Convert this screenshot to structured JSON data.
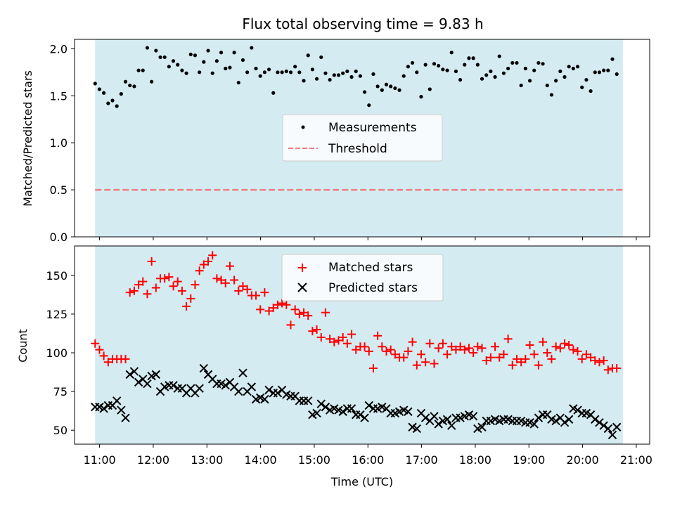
{
  "figure": {
    "title": "Flux total observing time = 9.83 h"
  },
  "colors": {
    "shade": "#d4ebf2",
    "measurement": "#000000",
    "threshold": "#f08080",
    "matched": "#ff0000",
    "predicted": "#000000"
  },
  "chart_data": [
    {
      "type": "scatter",
      "panel": "top",
      "title": "Flux total observing time = 9.83 h",
      "xlabel": "",
      "ylabel": "Matched/Predicted stars",
      "xlim": [
        "10:32",
        "21:15"
      ],
      "ylim": [
        0,
        2.1
      ],
      "yticks": [
        "0.0",
        "0.5",
        "1.0",
        "1.5",
        "2.0"
      ],
      "observing_window": [
        "10:55",
        "20:45"
      ],
      "legend": {
        "location": "center",
        "entries": [
          "Measurements",
          "Threshold"
        ]
      },
      "threshold": {
        "name": "Threshold",
        "value": 0.5
      },
      "series": [
        {
          "name": "Measurements",
          "x_start": "10:55",
          "x_step_minutes": 4.86,
          "y": [
            1.63,
            1.57,
            1.53,
            1.42,
            1.45,
            1.39,
            1.52,
            1.65,
            1.61,
            1.6,
            1.77,
            1.77,
            2.01,
            1.65,
            1.98,
            1.91,
            1.91,
            1.81,
            1.87,
            1.83,
            1.77,
            1.74,
            1.94,
            1.93,
            1.75,
            1.86,
            1.98,
            1.74,
            1.87,
            1.96,
            1.79,
            1.8,
            1.96,
            1.64,
            1.88,
            1.75,
            2.01,
            1.79,
            1.71,
            1.75,
            1.78,
            1.53,
            1.75,
            1.75,
            1.76,
            1.75,
            1.81,
            1.75,
            1.66,
            1.93,
            1.78,
            1.68,
            1.91,
            1.74,
            1.67,
            1.72,
            1.72,
            1.74,
            1.76,
            1.7,
            1.76,
            1.71,
            1.54,
            1.4,
            1.73,
            1.6,
            1.56,
            1.62,
            1.6,
            1.58,
            1.56,
            1.71,
            1.81,
            1.85,
            1.75,
            1.49,
            1.83,
            1.57,
            1.84,
            1.82,
            1.78,
            1.77,
            1.96,
            1.76,
            1.67,
            1.83,
            1.9,
            1.9,
            1.83,
            1.68,
            1.72,
            1.76,
            1.7,
            1.92,
            1.74,
            1.79,
            1.85,
            1.85,
            1.61,
            1.79,
            1.66,
            1.77,
            1.85,
            1.84,
            1.61,
            1.51,
            1.66,
            1.76,
            1.7,
            1.81,
            1.79,
            1.81,
            1.59,
            1.67,
            1.55,
            1.75,
            1.75,
            1.77,
            1.77,
            1.89,
            1.73
          ]
        }
      ]
    },
    {
      "type": "scatter",
      "panel": "bottom",
      "xlabel": "Time (UTC)",
      "ylabel": "Count",
      "xlim": [
        "10:32",
        "21:15"
      ],
      "ylim": [
        41,
        169
      ],
      "xticks": [
        "11:00",
        "12:00",
        "13:00",
        "14:00",
        "15:00",
        "16:00",
        "17:00",
        "18:00",
        "19:00",
        "20:00",
        "21:00"
      ],
      "yticks": [
        "50",
        "75",
        "100",
        "125",
        "150"
      ],
      "observing_window": [
        "10:55",
        "20:45"
      ],
      "legend": {
        "location": "upper center",
        "entries": [
          "Matched stars",
          "Predicted stars"
        ]
      },
      "series": [
        {
          "name": "Matched stars",
          "marker": "+",
          "x_start": "10:55",
          "x_step_minutes": 4.86,
          "y": [
            106,
            102,
            98,
            94,
            96,
            96,
            96,
            96,
            139,
            140,
            144,
            146,
            138,
            159,
            142,
            148,
            148,
            149,
            143,
            146,
            140,
            130,
            135,
            144,
            153,
            157,
            159,
            163,
            148,
            147,
            145,
            156,
            147,
            140,
            143,
            141,
            137,
            137,
            128,
            139,
            127,
            129,
            131,
            132,
            131,
            118,
            128,
            125,
            126,
            124,
            114,
            115,
            110,
            126,
            109,
            107,
            108,
            110,
            106,
            112,
            102,
            104,
            104,
            101,
            90,
            111,
            104,
            101,
            102,
            99,
            97,
            97,
            101,
            107,
            92,
            99,
            94,
            106,
            93,
            103,
            106,
            99,
            104,
            102,
            104,
            102,
            103,
            100,
            104,
            103,
            95,
            97,
            104,
            97,
            99,
            109,
            92,
            96,
            94,
            96,
            105,
            99,
            92,
            107,
            100,
            96,
            104,
            103,
            106,
            105,
            102,
            101,
            96,
            99,
            97,
            95,
            94,
            95,
            89,
            90,
            90
          ]
        },
        {
          "name": "Predicted stars",
          "marker": "x",
          "x_start": "10:55",
          "x_step_minutes": 4.86,
          "y": [
            65,
            65,
            64,
            66,
            66,
            69,
            63,
            58,
            86,
            88,
            81,
            83,
            80,
            85,
            86,
            75,
            78,
            79,
            79,
            77,
            77,
            74,
            77,
            74,
            77,
            90,
            86,
            83,
            80,
            80,
            79,
            81,
            78,
            75,
            87,
            75,
            78,
            70,
            71,
            70,
            76,
            74,
            74,
            76,
            73,
            72,
            72,
            69,
            69,
            69,
            60,
            61,
            67,
            65,
            63,
            64,
            63,
            62,
            64,
            64,
            60,
            60,
            58,
            66,
            64,
            64,
            65,
            64,
            61,
            61,
            62,
            63,
            62,
            52,
            51,
            61,
            58,
            56,
            59,
            54,
            56,
            57,
            53,
            58,
            58,
            59,
            60,
            59,
            51,
            52,
            56,
            56,
            57,
            56,
            57,
            57,
            56,
            56,
            56,
            55,
            55,
            54,
            58,
            60,
            60,
            57,
            56,
            58,
            55,
            57,
            64,
            63,
            61,
            61,
            60,
            57,
            55,
            53,
            51,
            47,
            52
          ]
        }
      ]
    }
  ]
}
